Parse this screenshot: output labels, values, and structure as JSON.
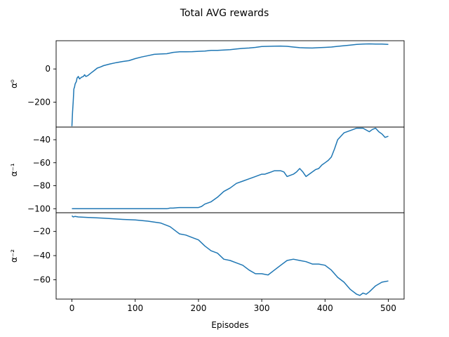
{
  "chart_data": {
    "type": "line",
    "title": "Total AVG rewards",
    "xlabel": "Episodes",
    "xlim": [
      -25,
      525
    ],
    "xticks": [
      0,
      100,
      200,
      300,
      400,
      500
    ],
    "line_color": "#1f77b4",
    "subplots": [
      {
        "ylabel": "α⁰",
        "ylim": [
          -350,
          170
        ],
        "yticks": [
          0,
          -200
        ],
        "ytick_labels": [
          "0",
          "−200"
        ],
        "series": [
          {
            "x": [
              0,
              1,
              2,
              3,
              4,
              5,
              7,
              8,
              10,
              12,
              15,
              18,
              20,
              22,
              25,
              30,
              35,
              40,
              45,
              50,
              60,
              70,
              80,
              90,
              100,
              110,
              120,
              130,
              140,
              150,
              160,
              170,
              180,
              190,
              200,
              210,
              220,
              230,
              240,
              250,
              260,
              270,
              280,
              290,
              300,
              310,
              320,
              330,
              340,
              350,
              360,
              370,
              380,
              390,
              400,
              410,
              420,
              430,
              440,
              450,
              460,
              470,
              480,
              490,
              500
            ],
            "y": [
              -345,
              -260,
              -200,
              -120,
              -110,
              -90,
              -75,
              -55,
              -45,
              -60,
              -50,
              -45,
              -35,
              -45,
              -40,
              -25,
              -10,
              5,
              12,
              20,
              30,
              38,
              45,
              50,
              62,
              72,
              80,
              88,
              90,
              92,
              100,
              103,
              103,
              104,
              106,
              108,
              112,
              112,
              114,
              116,
              120,
              124,
              126,
              130,
              135,
              136,
              137,
              138,
              136,
              132,
              128,
              127,
              126,
              128,
              130,
              132,
              136,
              140,
              144,
              148,
              150,
              151,
              150,
              150,
              148
            ]
          }
        ]
      },
      {
        "ylabel": "α⁻¹",
        "ylim": [
          -103.5,
          -29
        ],
        "yticks": [
          -40,
          -60,
          -80,
          -100
        ],
        "ytick_labels": [
          "−40",
          "−60",
          "−80",
          "−100"
        ],
        "series": [
          {
            "x": [
              0,
              50,
              100,
              150,
              155,
              160,
              170,
              180,
              190,
              200,
              205,
              210,
              220,
              230,
              240,
              250,
              260,
              270,
              280,
              290,
              300,
              305,
              310,
              315,
              320,
              330,
              335,
              340,
              350,
              355,
              360,
              365,
              370,
              375,
              380,
              385,
              390,
              395,
              400,
              405,
              410,
              415,
              420,
              425,
              430,
              440,
              450,
              460,
              470,
              475,
              480,
              485,
              490,
              495,
              500
            ],
            "y": [
              -100,
              -100,
              -100,
              -100,
              -99.5,
              -99.5,
              -99,
              -99,
              -99,
              -99,
              -98,
              -96,
              -94,
              -90,
              -85,
              -82,
              -78,
              -76,
              -74,
              -72,
              -70,
              -70,
              -69,
              -68,
              -67,
              -67,
              -68,
              -72,
              -70,
              -68,
              -65,
              -68,
              -72,
              -70,
              -68,
              -66,
              -65,
              -62,
              -60,
              -58,
              -55,
              -48,
              -40,
              -37,
              -34,
              -32,
              -30,
              -30,
              -33,
              -31,
              -30,
              -33,
              -35,
              -38,
              -37
            ]
          }
        ]
      },
      {
        "ylabel": "α⁻²",
        "ylim": [
          -76,
          -4.5
        ],
        "yticks": [
          -20,
          -40,
          -60
        ],
        "ytick_labels": [
          "−20",
          "−40",
          "−60"
        ],
        "series": [
          {
            "x": [
              0,
              2,
              5,
              10,
              30,
              50,
              80,
              100,
              120,
              140,
              150,
              155,
              160,
              165,
              170,
              180,
              190,
              200,
              210,
              220,
              230,
              240,
              250,
              260,
              270,
              280,
              290,
              300,
              310,
              320,
              330,
              340,
              350,
              360,
              370,
              380,
              390,
              400,
              410,
              420,
              430,
              440,
              450,
              455,
              460,
              465,
              470,
              480,
              490,
              500
            ],
            "y": [
              -7,
              -8,
              -7.5,
              -8,
              -8.5,
              -9,
              -10,
              -10.5,
              -11.5,
              -13,
              -15,
              -16,
              -18,
              -20,
              -22,
              -23,
              -25,
              -27,
              -32,
              -36,
              -38,
              -43,
              -44,
              -46,
              -48,
              -52,
              -55,
              -55,
              -56,
              -52,
              -48,
              -44,
              -43,
              -44,
              -45,
              -47,
              -47,
              -48,
              -52,
              -58,
              -62,
              -68,
              -72,
              -73,
              -71,
              -72,
              -70,
              -65,
              -62,
              -61
            ]
          }
        ]
      }
    ]
  }
}
